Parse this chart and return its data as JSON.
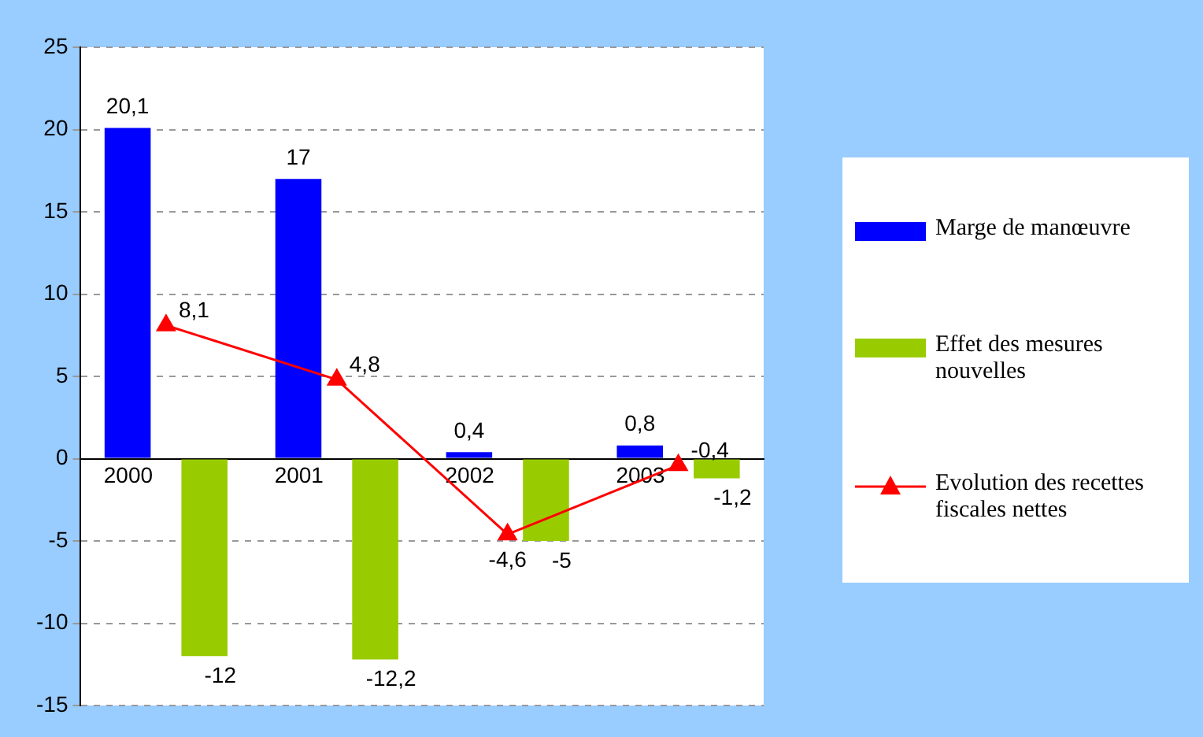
{
  "chart_data": {
    "type": "bar",
    "categories": [
      "2000",
      "2001",
      "2002",
      "2003"
    ],
    "series": [
      {
        "name": "Marge de manœuvre",
        "color": "#0000ff",
        "values": [
          20.1,
          17,
          0.4,
          0.8
        ],
        "value_labels": [
          "20,1",
          "17",
          "0,4",
          "0,8"
        ]
      },
      {
        "name": "Effet des mesures nouvelles",
        "color": "#99cc00",
        "values": [
          -12,
          -12.2,
          -5,
          -1.2
        ],
        "value_labels": [
          "-12",
          "-12,2",
          "-5",
          "-1,2"
        ]
      },
      {
        "name": "Evolution des recettes fiscales nettes",
        "type": "line",
        "color": "#ff0000",
        "marker": "triangle",
        "values": [
          8.1,
          4.8,
          -4.6,
          -0.4
        ],
        "value_labels": [
          "8,1",
          "4,8",
          "-4,6",
          "-0,4"
        ]
      }
    ],
    "ylim": [
      -15,
      25
    ],
    "yticks": [
      -15,
      -10,
      -5,
      0,
      5,
      10,
      15,
      20,
      25
    ],
    "grid": "y",
    "legend": "right"
  }
}
